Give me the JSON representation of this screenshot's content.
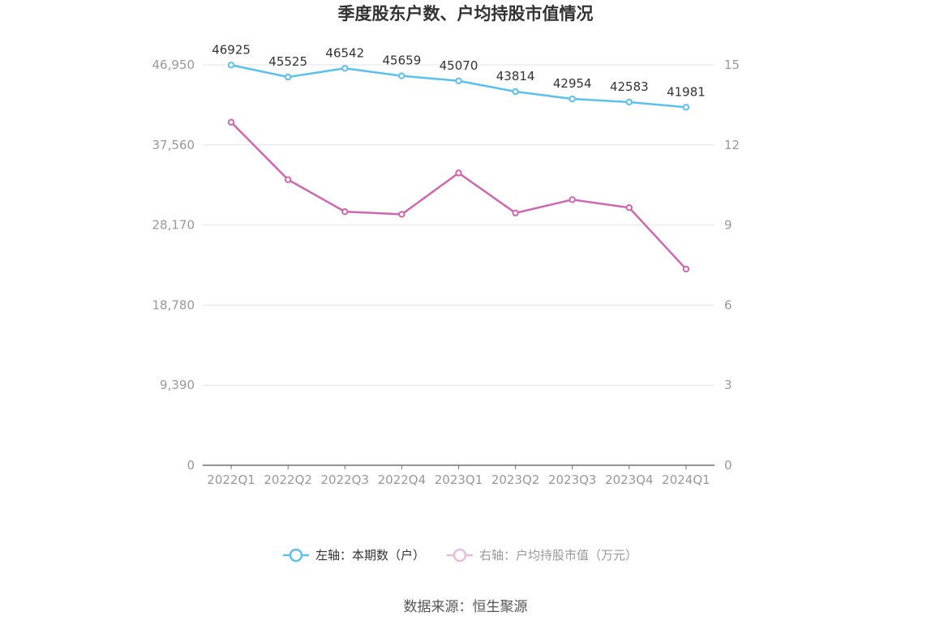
{
  "chart_data": {
    "type": "line",
    "title": "季度股东户数、户均持股市值情况",
    "categories": [
      "2022Q1",
      "2022Q2",
      "2022Q3",
      "2022Q4",
      "2023Q1",
      "2023Q2",
      "2023Q3",
      "2023Q4",
      "2024Q1"
    ],
    "left_axis": {
      "ylim": [
        0,
        46950
      ],
      "tick_labels": [
        "0",
        "9,390",
        "18,780",
        "28,170",
        "37,560",
        "46,950"
      ],
      "tick_values": [
        0,
        9390,
        18780,
        28170,
        37560,
        46950
      ]
    },
    "right_axis": {
      "ylim": [
        0,
        15
      ],
      "tick_labels": [
        "0",
        "3",
        "6",
        "9",
        "12",
        "15"
      ],
      "tick_values": [
        0,
        3,
        6,
        9,
        12,
        15
      ]
    },
    "series": [
      {
        "name": "左轴：本期数（户）",
        "axis": "left",
        "color": "#5bc0f0",
        "values": [
          46925,
          45525,
          46542,
          45659,
          45070,
          43814,
          42954,
          42583,
          41981
        ],
        "data_labels": [
          "46925",
          "45525",
          "46542",
          "45659",
          "45070",
          "43814",
          "42954",
          "42583",
          "41981"
        ]
      },
      {
        "name": "右轴：户均持股市值（万元）",
        "axis": "right",
        "color": "#d065b0",
        "values": [
          12.85,
          10.7,
          9.5,
          9.4,
          10.95,
          9.45,
          9.95,
          9.65,
          7.35
        ]
      }
    ],
    "legend": {
      "position": "bottom"
    },
    "grid": true,
    "grid_color": "#e1e4ef",
    "axis_color": "#6e7079"
  },
  "source_text": "数据来源：恒生聚源"
}
